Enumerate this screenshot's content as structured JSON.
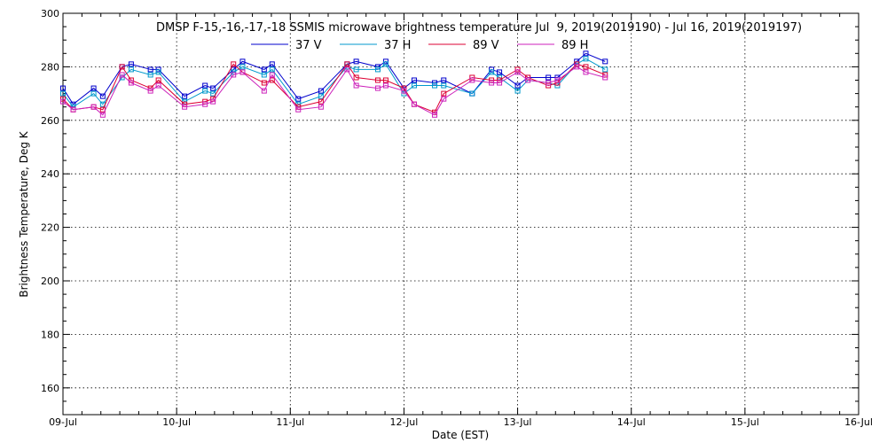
{
  "chart_data": {
    "type": "line",
    "title": "DMSP F-15,-16,-17,-18 SSMIS microwave brightness temperature Jul  9, 2019(2019190) - Jul 16, 2019(2019197)",
    "xlabel": "Date (EST)",
    "ylabel": "Brightness Temperature, Deg K",
    "xlim": [
      "2019-07-09",
      "2019-07-16"
    ],
    "ylim": [
      150,
      300
    ],
    "x_unit": "days since 2019-07-09 00:00 EST",
    "x_ticks": [
      {
        "pos": 0,
        "label": "09-Jul"
      },
      {
        "pos": 1,
        "label": "10-Jul"
      },
      {
        "pos": 2,
        "label": "11-Jul"
      },
      {
        "pos": 3,
        "label": "12-Jul"
      },
      {
        "pos": 4,
        "label": "13-Jul"
      },
      {
        "pos": 5,
        "label": "14-Jul"
      },
      {
        "pos": 6,
        "label": "15-Jul"
      },
      {
        "pos": 7,
        "label": "16-Jul"
      }
    ],
    "y_ticks": [
      {
        "pos": 160,
        "label": "160"
      },
      {
        "pos": 180,
        "label": "180"
      },
      {
        "pos": 200,
        "label": "200"
      },
      {
        "pos": 220,
        "label": "220"
      },
      {
        "pos": 240,
        "label": "240"
      },
      {
        "pos": 260,
        "label": "260"
      },
      {
        "pos": 280,
        "label": "280"
      },
      {
        "pos": 300,
        "label": "300"
      }
    ],
    "grid": true,
    "legend_position": "top-center",
    "x": [
      0.0,
      0.09,
      0.27,
      0.35,
      0.52,
      0.6,
      0.77,
      0.84,
      1.07,
      1.25,
      1.32,
      1.5,
      1.58,
      1.77,
      1.84,
      2.07,
      2.27,
      2.5,
      2.58,
      2.77,
      2.84,
      3.0,
      3.09,
      3.27,
      3.35,
      3.6,
      3.77,
      3.84,
      4.0,
      4.09,
      4.27,
      4.35,
      4.52,
      4.6,
      4.77
    ],
    "series": [
      {
        "name": "37 V",
        "color": "#0000cc",
        "values": [
          272,
          266,
          272,
          269,
          280,
          281,
          279,
          279,
          269,
          273,
          272,
          279,
          282,
          279,
          281,
          268,
          271,
          281,
          282,
          280,
          282,
          272,
          275,
          274,
          275,
          270,
          279,
          278,
          273,
          276,
          276,
          276,
          282,
          285,
          282
        ]
      },
      {
        "name": "37 H",
        "color": "#0099cc",
        "values": [
          270,
          265,
          270,
          266,
          276,
          279,
          277,
          278,
          267,
          271,
          270,
          278,
          280,
          277,
          279,
          266,
          269,
          280,
          279,
          279,
          281,
          270,
          273,
          273,
          273,
          270,
          278,
          276,
          271,
          275,
          274,
          273,
          281,
          283,
          279
        ]
      },
      {
        "name": "89 V",
        "color": "#dd0033",
        "values": [
          268,
          264,
          265,
          264,
          280,
          275,
          272,
          275,
          266,
          267,
          268,
          281,
          278,
          274,
          275,
          265,
          267,
          281,
          276,
          275,
          275,
          272,
          266,
          263,
          270,
          276,
          275,
          275,
          279,
          276,
          273,
          274,
          281,
          280,
          277
        ]
      },
      {
        "name": "89 H",
        "color": "#cc22bb",
        "values": [
          267,
          264,
          265,
          262,
          277,
          274,
          271,
          273,
          265,
          266,
          267,
          277,
          278,
          271,
          277,
          264,
          265,
          279,
          273,
          272,
          273,
          271,
          266,
          262,
          268,
          275,
          274,
          274,
          278,
          275,
          274,
          275,
          280,
          278,
          276
        ]
      }
    ]
  }
}
